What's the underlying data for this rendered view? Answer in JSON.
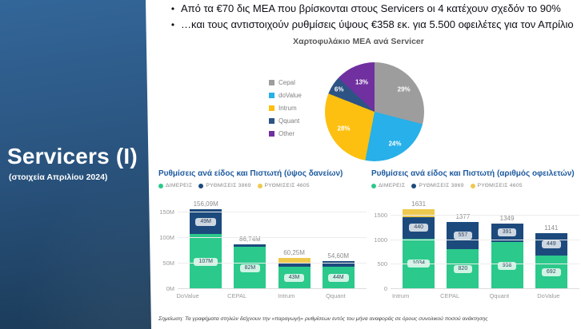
{
  "sidebar": {
    "title": "Servicers (I)",
    "subtitle": "(στοιχεία Απριλίου 2024)",
    "bg_top": "#336699",
    "bg_bottom": "#1a3a57"
  },
  "bullets": {
    "items": [
      "Από τα €70 δις ΜΕΑ που βρίσκονται στους Servicers οι 4 κατέχουν σχεδόν το 90%",
      "…και τους αντιστοιχούν ρυθμίσεις ύψους €358 εκ. για 5.500 οφειλέτες για τον Απρίλιο"
    ]
  },
  "footnote": "Σημείωση: Τα γραφήματα στηλών δείχνουν την «παραγωγή» ρυθμίσεων εντός του μήνα αναφοράς σε όρους συνολικού ποσού ανάκτησης",
  "chart_data": [
    {
      "type": "pie",
      "title": "Χαρτοφυλάκιο ΜΕΑ ανά Servicer",
      "legend_position": "left",
      "slices": [
        {
          "label": "Cepal",
          "value": 29,
          "data_label": "29%",
          "color": "#9d9d9d",
          "label_r": 0.76
        },
        {
          "label": "doValue",
          "value": 24,
          "data_label": "24%",
          "color": "#27b0e9",
          "label_r": 0.78
        },
        {
          "label": "Intrum",
          "value": 28,
          "data_label": "28%",
          "color": "#fdc010",
          "label_r": 0.72
        },
        {
          "label": "Qquant",
          "value": 6,
          "data_label": "6%",
          "color": "#2d5385",
          "label_r": 0.86
        },
        {
          "label": "Other",
          "value": 13,
          "data_label": "13%",
          "color": "#7030a0",
          "label_r": 0.66
        }
      ]
    },
    {
      "type": "bar",
      "stacked": true,
      "title": "Ρυθμίσεις ανά είδος και Πιστωτή (ύψος δανείων)",
      "categories": [
        "DoValue",
        "CEPAL",
        "Intrum",
        "Qquant"
      ],
      "series": [
        {
          "name": "ΔΙΜΕΡΕΙΣ",
          "color": "#2bc98b",
          "values": [
            107,
            82,
            43,
            44
          ],
          "labels": [
            "107M",
            "82M",
            "43M",
            "44M"
          ]
        },
        {
          "name": "ΡΥΘΜΙΣΕΙΣ 3869",
          "color": "#1c4a7d",
          "values": [
            49.09,
            4.74,
            8.5,
            10.6
          ],
          "labels": [
            "49M",
            null,
            null,
            null
          ]
        },
        {
          "name": "ΡΥΘΜΙΣΕΙΣ 4605",
          "color": "#eec94f",
          "values": [
            0,
            0,
            8.75,
            0
          ],
          "labels": [
            null,
            null,
            null,
            null
          ]
        }
      ],
      "totals": [
        "156,09M",
        "86,74M",
        "60,25M",
        "54,60M"
      ],
      "y_ticks": [
        {
          "label": "0M",
          "value": 0
        },
        {
          "label": "50M",
          "value": 50
        },
        {
          "label": "100M",
          "value": 100
        },
        {
          "label": "150M",
          "value": 150
        }
      ],
      "y_max": 162,
      "grid": true,
      "legend_position": "top"
    },
    {
      "type": "bar",
      "stacked": true,
      "title": "Ρυθμίσεις ανά είδος και Πιστωτή (αριθμός οφειλετών)",
      "categories": [
        "Intrum",
        "CEPAL",
        "Qquant",
        "DoValue"
      ],
      "series": [
        {
          "name": "ΔΙΜΕΡΕΙΣ",
          "color": "#2bc98b",
          "values": [
            1034,
            820,
            958,
            692
          ],
          "labels": [
            "1034",
            "820",
            "958",
            "692"
          ]
        },
        {
          "name": "ΡΥΘΜΙΣΕΙΣ 3869",
          "color": "#1c4a7d",
          "values": [
            440,
            557,
            391,
            449
          ],
          "labels": [
            "440",
            "557",
            "391",
            "449"
          ]
        },
        {
          "name": "ΡΥΘΜΙΣΕΙΣ 4605",
          "color": "#eec94f",
          "values": [
            157,
            0,
            0,
            0
          ],
          "labels": [
            null,
            null,
            null,
            null
          ]
        }
      ],
      "totals": [
        "1631",
        "1377",
        "1349",
        "1141"
      ],
      "y_ticks": [
        {
          "label": "0",
          "value": 0
        },
        {
          "label": "500",
          "value": 500
        },
        {
          "label": "1000",
          "value": 1000
        },
        {
          "label": "1500",
          "value": 1500
        }
      ],
      "y_max": 1700,
      "grid": true,
      "legend_position": "top"
    }
  ]
}
